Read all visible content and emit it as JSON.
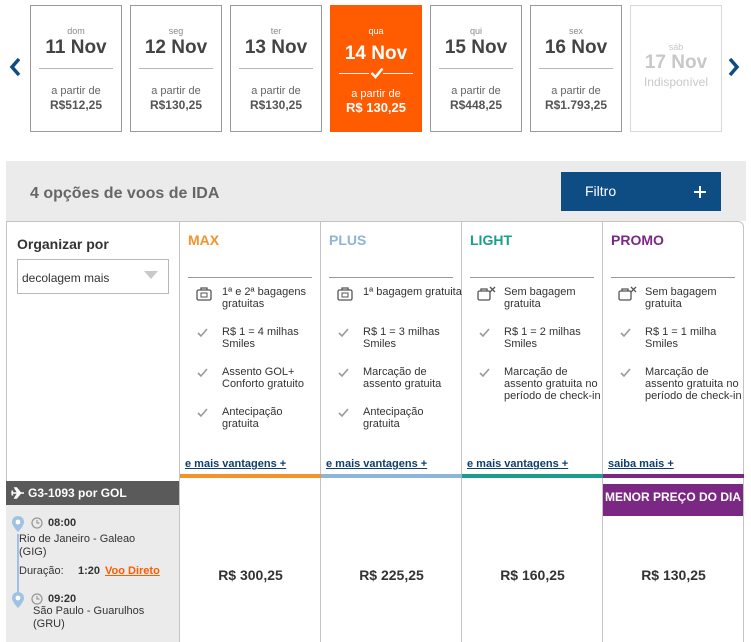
{
  "dates": [
    {
      "dow": "dom",
      "day": "11 Nov",
      "from": "a partir de",
      "price": "R$512,25"
    },
    {
      "dow": "seg",
      "day": "12 Nov",
      "from": "a partir de",
      "price": "R$130,25"
    },
    {
      "dow": "ter",
      "day": "13 Nov",
      "from": "a partir de",
      "price": "R$130,25"
    },
    {
      "dow": "qua",
      "day": "14 Nov",
      "from": "a partir de",
      "price": "R$ 130,25"
    },
    {
      "dow": "qui",
      "day": "15 Nov",
      "from": "a partir de",
      "price": "R$448,25"
    },
    {
      "dow": "sex",
      "day": "16 Nov",
      "from": "a partir de",
      "price": "R$1.793,25"
    },
    {
      "dow": "sáb",
      "day": "17 Nov",
      "from": "Indisponível"
    }
  ],
  "results": {
    "title": "4 opções de voos de IDA",
    "filter_label": "Filtro"
  },
  "sort": {
    "label": "Organizar por",
    "value": "decolagem mais"
  },
  "fares": [
    {
      "name": "MAX",
      "color": "#f5922a",
      "features": [
        "1ª e 2ª bagagens gratuitas",
        "R$ 1 = 4 milhas Smiles",
        "Assento GOL+ Conforto gratuito",
        "Antecipação gratuita"
      ],
      "more": "e mais vantagens +",
      "price": "R$ 300,25"
    },
    {
      "name": "PLUS",
      "color": "#8fb4d9",
      "features": [
        "1ª bagagem gratuita",
        "R$ 1 = 3 milhas Smiles",
        "Marcação de assento gratuita",
        "Antecipação gratuita"
      ],
      "more": "e mais vantagens +",
      "price": "R$ 225,25"
    },
    {
      "name": "LIGHT",
      "color": "#1a9e8a",
      "features": [
        "Sem bagagem gratuita",
        "R$ 1 = 2 milhas Smiles",
        "Marcação de assento gratuita no período de check-in"
      ],
      "more": "e mais vantagens +",
      "price": "R$ 160,25"
    },
    {
      "name": "PROMO",
      "color": "#7b2885",
      "features": [
        "Sem bagagem gratuita",
        "R$ 1 = 1 milha Smiles",
        "Marcação de assento gratuita no período de check-in"
      ],
      "more": "saiba mais +",
      "price": "R$ 130,25"
    }
  ],
  "flight": {
    "code": "G3-1093 por  GOL",
    "depart_time": "08:00",
    "depart_airport": "Rio de Janeiro - Galeao (GIG)",
    "duration_label": "Duração:",
    "duration": "1:20",
    "direct": "Voo Direto",
    "arrive_time": "09:20",
    "arrive_airport": "São Paulo - Guarulhos (GRU)"
  },
  "lowest_badge": "MENOR  PREÇO DO DIA",
  "colors": {
    "selected": "#ff5b00",
    "primary": "#0e4c84",
    "route": "#9fc2e4"
  }
}
